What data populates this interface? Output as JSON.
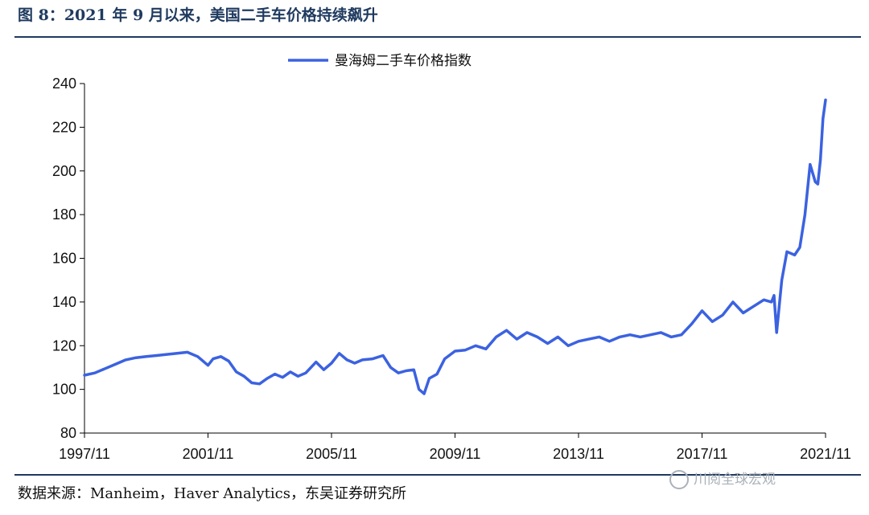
{
  "figure": {
    "title": "图 8：2021 年 9 月以来，美国二手车价格持续飙升",
    "source": "数据来源：Manheim，Haver Analytics，东吴证券研究所",
    "watermark": "川阅全球宏观"
  },
  "chart_data": {
    "type": "line",
    "title": "",
    "xlabel": "",
    "ylabel": "",
    "ylim": [
      80,
      240
    ],
    "yticks": [
      80,
      100,
      120,
      140,
      160,
      180,
      200,
      220,
      240
    ],
    "xticks": [
      "1997/11",
      "2001/11",
      "2005/11",
      "2009/11",
      "2013/11",
      "2017/11",
      "2021/11"
    ],
    "x_range": [
      "1997/11",
      "2021/11"
    ],
    "legend": {
      "placement": "top-center"
    },
    "grid": false,
    "colors": {
      "line": "#3b62e0",
      "axis": "#000000"
    },
    "series": [
      {
        "name": "曼海姆二手车价格指数",
        "points": [
          [
            "1997/11",
            106.5
          ],
          [
            "1998/03",
            107.5
          ],
          [
            "1998/07",
            109.5
          ],
          [
            "1998/11",
            111.5
          ],
          [
            "1999/03",
            113.5
          ],
          [
            "1999/07",
            114.5
          ],
          [
            "1999/11",
            115.0
          ],
          [
            "2000/03",
            115.5
          ],
          [
            "2000/07",
            116.0
          ],
          [
            "2000/11",
            116.5
          ],
          [
            "2001/03",
            117.0
          ],
          [
            "2001/07",
            115.0
          ],
          [
            "2001/11",
            111.0
          ],
          [
            "2002/01",
            114.0
          ],
          [
            "2002/04",
            115.0
          ],
          [
            "2002/07",
            113.0
          ],
          [
            "2002/10",
            108.0
          ],
          [
            "2003/01",
            106.0
          ],
          [
            "2003/04",
            103.0
          ],
          [
            "2003/07",
            102.5
          ],
          [
            "2003/10",
            105.0
          ],
          [
            "2004/01",
            107.0
          ],
          [
            "2004/04",
            105.5
          ],
          [
            "2004/07",
            108.0
          ],
          [
            "2004/10",
            106.0
          ],
          [
            "2005/01",
            107.5
          ],
          [
            "2005/05",
            112.5
          ],
          [
            "2005/08",
            109.0
          ],
          [
            "2005/11",
            112.0
          ],
          [
            "2006/02",
            116.5
          ],
          [
            "2006/05",
            113.5
          ],
          [
            "2006/08",
            112.0
          ],
          [
            "2006/11",
            113.5
          ],
          [
            "2007/03",
            114.0
          ],
          [
            "2007/07",
            115.5
          ],
          [
            "2007/10",
            110.0
          ],
          [
            "2008/01",
            107.5
          ],
          [
            "2008/04",
            108.5
          ],
          [
            "2008/07",
            109.0
          ],
          [
            "2008/09",
            100.0
          ],
          [
            "2008/11",
            98.0
          ],
          [
            "2009/01",
            105.0
          ],
          [
            "2009/04",
            107.0
          ],
          [
            "2009/07",
            114.0
          ],
          [
            "2009/11",
            117.5
          ],
          [
            "2010/03",
            118.0
          ],
          [
            "2010/07",
            120.0
          ],
          [
            "2010/11",
            118.5
          ],
          [
            "2011/03",
            124.0
          ],
          [
            "2011/07",
            127.0
          ],
          [
            "2011/11",
            123.0
          ],
          [
            "2012/03",
            126.0
          ],
          [
            "2012/07",
            124.0
          ],
          [
            "2012/11",
            121.0
          ],
          [
            "2013/03",
            124.0
          ],
          [
            "2013/07",
            120.0
          ],
          [
            "2013/11",
            122.0
          ],
          [
            "2014/03",
            123.0
          ],
          [
            "2014/07",
            124.0
          ],
          [
            "2014/11",
            122.0
          ],
          [
            "2015/03",
            124.0
          ],
          [
            "2015/07",
            125.0
          ],
          [
            "2015/11",
            124.0
          ],
          [
            "2016/03",
            125.0
          ],
          [
            "2016/07",
            126.0
          ],
          [
            "2016/11",
            124.0
          ],
          [
            "2017/03",
            125.0
          ],
          [
            "2017/07",
            130.0
          ],
          [
            "2017/11",
            136.0
          ],
          [
            "2018/03",
            131.0
          ],
          [
            "2018/07",
            134.0
          ],
          [
            "2018/11",
            140.0
          ],
          [
            "2019/03",
            135.0
          ],
          [
            "2019/07",
            138.0
          ],
          [
            "2019/11",
            141.0
          ],
          [
            "2020/02",
            140.0
          ],
          [
            "2020/03",
            143.0
          ],
          [
            "2020/04",
            126.0
          ],
          [
            "2020/06",
            150.0
          ],
          [
            "2020/08",
            163.0
          ],
          [
            "2020/11",
            161.5
          ],
          [
            "2021/01",
            165.0
          ],
          [
            "2021/03",
            180.0
          ],
          [
            "2021/05",
            203.0
          ],
          [
            "2021/07",
            195.0
          ],
          [
            "2021/08",
            194.0
          ],
          [
            "2021/09",
            205.0
          ],
          [
            "2021/10",
            224.0
          ],
          [
            "2021/11",
            232.5
          ]
        ]
      }
    ]
  }
}
